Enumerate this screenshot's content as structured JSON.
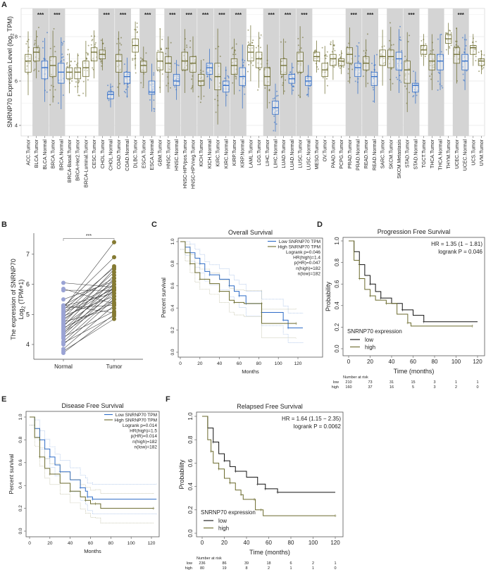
{
  "panel_labels": [
    "A",
    "B",
    "C",
    "D",
    "E",
    "F"
  ],
  "chart_data": [
    {
      "panel": "A",
      "type": "box",
      "ylabel_parts": [
        "SNRNP70 Expression Level (log",
        "2",
        " TPM)"
      ],
      "yticks": [
        4,
        6,
        8
      ],
      "categories": [
        "ACC.Tumor",
        "BLCA.Tumor",
        "BLCA.Normal",
        "BRCA.Tumor",
        "BRCA.Normal",
        "BRCA-Basal.Tumor",
        "BRCA-Her2.Tumor",
        "BRCA-Luminal.Tumor",
        "CESC.Tumor",
        "CHOL.Tumor",
        "CHOL.Normal",
        "COAD.Tumor",
        "COAD.Normal",
        "DLBC.Tumor",
        "ESCA.Tumor",
        "ESCA.Normal",
        "GBM.Tumor",
        "HNSC.Tumor",
        "HNSC.Normal",
        "HNSC-HPVpos.Tumor",
        "HNSC-HPVneg.Tumor",
        "KICH.Tumor",
        "KICH.Normal",
        "KIRC.Tumor",
        "KIRC.Normal",
        "KIRP.Tumor",
        "KIRP.Normal",
        "LAML.Tumor",
        "LGG.Tumor",
        "LIHC.Tumor",
        "LIHC.Normal",
        "LUAD.Tumor",
        "LUAD.Normal",
        "LUSC.Tumor",
        "LUSC.Normal",
        "MESO.Tumor",
        "OV.Tumor",
        "PAAD.Tumor",
        "PCPG.Tumor",
        "PRAD.Tumor",
        "PRAD.Normal",
        "READ.Tumor",
        "READ.Normal",
        "SARC.Tumor",
        "SKCM.Tumor",
        "SKCM.Metastasis",
        "STAD.Tumor",
        "STAD.Normal",
        "TGCT.Tumor",
        "THCA.Tumor",
        "THCA.Normal",
        "THYM.Tumor",
        "UCEC.Tumor",
        "UCEC.Normal",
        "UCS.Tumor",
        "UVM.Tumor"
      ],
      "median": [
        6.9,
        7.3,
        6.6,
        6.7,
        6.4,
        6.4,
        6.4,
        6.6,
        7.3,
        7.2,
        5.4,
        6.9,
        6.2,
        7.6,
        6.7,
        5.5,
        6.9,
        6.8,
        6.0,
        6.9,
        6.8,
        6.0,
        6.6,
        6.2,
        5.8,
        6.7,
        6.2,
        7.3,
        7.0,
        6.2,
        4.8,
        6.7,
        6.1,
        6.9,
        6.0,
        7.1,
        6.5,
        7.0,
        6.9,
        7.2,
        6.6,
        6.8,
        6.2,
        7.1,
        7.1,
        7.0,
        6.5,
        5.8,
        7.4,
        6.9,
        6.9,
        7.9,
        7.2,
        6.9,
        7.5,
        6.9
      ],
      "q1": [
        6.4,
        6.9,
        6.1,
        6.2,
        5.9,
        6.1,
        6.1,
        6.2,
        6.9,
        7.0,
        5.2,
        6.4,
        5.9,
        7.3,
        6.4,
        5.4,
        6.5,
        6.4,
        5.8,
        6.5,
        6.4,
        5.8,
        6.3,
        5.6,
        5.5,
        6.3,
        5.8,
        6.9,
        6.6,
        5.8,
        4.5,
        6.3,
        5.9,
        6.4,
        5.8,
        6.9,
        6.2,
        6.7,
        6.7,
        6.8,
        6.2,
        6.5,
        5.8,
        6.7,
        6.6,
        6.5,
        5.9,
        5.5,
        7.2,
        6.5,
        6.5,
        7.7,
        6.8,
        6.5,
        7.2,
        6.7
      ],
      "q3": [
        7.2,
        7.5,
        6.9,
        7.1,
        6.8,
        6.6,
        6.6,
        6.9,
        7.5,
        7.4,
        5.5,
        7.2,
        6.4,
        7.9,
        6.9,
        6.0,
        7.3,
        7.1,
        6.3,
        7.3,
        7.1,
        6.3,
        6.8,
        6.8,
        6.0,
        7.0,
        6.6,
        7.6,
        7.3,
        6.6,
        5.1,
        7.0,
        6.3,
        7.3,
        6.2,
        7.3,
        6.8,
        7.2,
        7.0,
        7.5,
        6.8,
        7.1,
        6.4,
        7.4,
        7.4,
        7.3,
        6.9,
        5.9,
        7.6,
        7.2,
        7.2,
        8.1,
        7.5,
        7.2,
        7.6,
        7.0
      ],
      "shaded_pairs": [
        {
          "pair": [
            1,
            2
          ],
          "sig": "***"
        },
        {
          "pair": [
            3,
            4
          ],
          "sig": "***"
        },
        {
          "pair": [
            9,
            10
          ],
          "sig": "***"
        },
        {
          "pair": [
            11,
            12
          ],
          "sig": "***"
        },
        {
          "pair": [
            14,
            15
          ],
          "sig": "***"
        },
        {
          "pair": [
            17,
            18
          ],
          "sig": "***"
        },
        {
          "pair": [
            19,
            20
          ],
          "sig": "***"
        },
        {
          "pair": [
            21,
            22
          ],
          "sig": "***"
        },
        {
          "pair": [
            23,
            24
          ],
          "sig": "***"
        },
        {
          "pair": [
            25,
            26
          ],
          "sig": "***"
        },
        {
          "pair": [
            29,
            30
          ],
          "sig": "***"
        },
        {
          "pair": [
            31,
            32
          ],
          "sig": "***"
        },
        {
          "pair": [
            33,
            34
          ],
          "sig": "***"
        },
        {
          "pair": [
            39,
            40
          ],
          "sig": "***"
        },
        {
          "pair": [
            41,
            42
          ],
          "sig": "***"
        },
        {
          "pair": [
            44,
            45
          ],
          "sig": ""
        },
        {
          "pair": [
            46,
            47
          ],
          "sig": "***"
        },
        {
          "pair": [
            49,
            50
          ],
          "sig": ""
        },
        {
          "pair": [
            52,
            53
          ],
          "sig": "***"
        }
      ],
      "colors": {
        "tumor": "#6b6a2c",
        "normal": "#2e6cc8",
        "shade": "#d4d4d4"
      }
    },
    {
      "panel": "B",
      "type": "line",
      "ylabel_line1": "The expression of SNRNP70",
      "ylabel_parts": [
        "Log",
        "2",
        " (TPM+1)"
      ],
      "categories": [
        "Normal",
        "Tumor"
      ],
      "yticks": [
        4,
        5,
        6,
        7
      ],
      "significance": "***",
      "normal": [
        3.72,
        3.78,
        3.85,
        4.0,
        4.05,
        4.1,
        4.2,
        4.25,
        4.3,
        4.35,
        4.4,
        4.45,
        4.5,
        4.55,
        4.6,
        4.65,
        4.7,
        4.75,
        4.8,
        4.85,
        4.9,
        4.95,
        5.0,
        5.05,
        5.1,
        5.15,
        5.2,
        5.22,
        5.25,
        5.28,
        5.3,
        5.3,
        5.5,
        5.8,
        5.85,
        6.05
      ],
      "tumor": [
        5.0,
        4.85,
        5.3,
        5.5,
        4.95,
        5.6,
        5.8,
        5.1,
        5.9,
        6.2,
        5.5,
        5.7,
        6.0,
        5.4,
        6.3,
        5.8,
        6.5,
        5.2,
        6.1,
        5.9,
        6.4,
        5.6,
        6.6,
        5.85,
        6.0,
        6.55,
        7.4,
        5.3,
        6.9,
        5.7,
        6.2,
        5.05,
        6.1,
        5.8,
        5.35,
        5.9
      ],
      "colors": {
        "normal": "#9aa3d4",
        "tumor": "#857a32"
      }
    },
    {
      "panel": "C",
      "type": "line",
      "title": "Overall Survival",
      "xlabel": "Months",
      "ylabel": "Percent survival",
      "xticks": [
        0,
        20,
        40,
        60,
        80,
        100,
        120
      ],
      "yticks": [
        "0.0",
        "0.2",
        "0.4",
        "0.6",
        "0.8",
        "1.0"
      ],
      "series": [
        {
          "name": "Low SNRNP70 TPM",
          "color": "#2e6cc8",
          "points": [
            [
              0,
              1
            ],
            [
              5,
              0.95
            ],
            [
              10,
              0.9
            ],
            [
              15,
              0.85
            ],
            [
              20,
              0.8
            ],
            [
              25,
              0.73
            ],
            [
              30,
              0.7
            ],
            [
              40,
              0.66
            ],
            [
              50,
              0.6
            ],
            [
              55,
              0.55
            ],
            [
              60,
              0.51
            ],
            [
              67,
              0.51
            ],
            [
              67,
              0.44
            ],
            [
              83,
              0.44
            ],
            [
              83,
              0.36
            ],
            [
              105,
              0.36
            ],
            [
              105,
              0.29
            ],
            [
              110,
              0.29
            ],
            [
              110,
              0.22
            ],
            [
              125,
              0.22
            ]
          ]
        },
        {
          "name": "High SNRNP70 TPM",
          "color": "#6b6a2c",
          "points": [
            [
              0,
              1
            ],
            [
              5,
              0.9
            ],
            [
              10,
              0.8
            ],
            [
              15,
              0.72
            ],
            [
              20,
              0.66
            ],
            [
              30,
              0.62
            ],
            [
              40,
              0.55
            ],
            [
              50,
              0.47
            ],
            [
              55,
              0.45
            ],
            [
              65,
              0.44
            ],
            [
              83,
              0.44
            ],
            [
              83,
              0.26
            ],
            [
              118,
              0.26
            ]
          ]
        }
      ],
      "stats": [
        "Logrank p=0.046",
        "HR(high)=1.4",
        "p(HR)=0.047",
        "n(high)=182",
        "n(low)=182"
      ]
    },
    {
      "panel": "D",
      "type": "line",
      "title": "Progression Free Survival",
      "xlabel": "Time (months)",
      "ylabel": "Probability",
      "xticks": [
        0,
        20,
        40,
        60,
        80,
        100,
        120
      ],
      "yticks": [
        "0.0",
        "0.2",
        "0.4",
        "0.6",
        "0.8",
        "1.0"
      ],
      "hr_text": "HR = 1.35 (1 − 1.81)",
      "logrank_text": "logrank P = 0.046",
      "legend_title": "SNRNP70 expression",
      "series": [
        {
          "name": "low",
          "color": "#111111",
          "points": [
            [
              0,
              1
            ],
            [
              5,
              0.9
            ],
            [
              10,
              0.78
            ],
            [
              15,
              0.68
            ],
            [
              20,
              0.6
            ],
            [
              25,
              0.53
            ],
            [
              30,
              0.47
            ],
            [
              40,
              0.42
            ],
            [
              50,
              0.36
            ],
            [
              60,
              0.31
            ],
            [
              70,
              0.25
            ],
            [
              120,
              0.25
            ]
          ]
        },
        {
          "name": "high",
          "color": "#6b6a2c",
          "points": [
            [
              0,
              1
            ],
            [
              5,
              0.82
            ],
            [
              10,
              0.65
            ],
            [
              15,
              0.55
            ],
            [
              20,
              0.49
            ],
            [
              25,
              0.45
            ],
            [
              35,
              0.42
            ],
            [
              45,
              0.32
            ],
            [
              55,
              0.24
            ],
            [
              58,
              0.21
            ],
            [
              115,
              0.21
            ]
          ]
        }
      ],
      "number_at_risk": {
        "title": "Number at risk",
        "rows": [
          {
            "label": "low",
            "values": [
              210,
              73,
              31,
              15,
              3,
              1,
              1
            ]
          },
          {
            "label": "high",
            "values": [
              160,
              37,
              16,
              5,
              3,
              2,
              0
            ]
          }
        ]
      }
    },
    {
      "panel": "E",
      "type": "line",
      "title": "Disease Free Survival",
      "xlabel": "Months",
      "ylabel": "Percent survival",
      "xticks": [
        0,
        20,
        40,
        60,
        80,
        100,
        120
      ],
      "yticks": [
        "0.0",
        "0.2",
        "0.4",
        "0.6",
        "0.8",
        "1.0"
      ],
      "series": [
        {
          "name": "Low SNRNP70 TPM",
          "color": "#2e6cc8",
          "points": [
            [
              0,
              1
            ],
            [
              5,
              0.9
            ],
            [
              10,
              0.8
            ],
            [
              15,
              0.72
            ],
            [
              20,
              0.65
            ],
            [
              25,
              0.58
            ],
            [
              30,
              0.52
            ],
            [
              40,
              0.45
            ],
            [
              50,
              0.38
            ],
            [
              55,
              0.35
            ],
            [
              57,
              0.3
            ],
            [
              62,
              0.3
            ],
            [
              62,
              0.28
            ],
            [
              125,
              0.28
            ]
          ]
        },
        {
          "name": "High SNRNP70 TPM",
          "color": "#6b6a2c",
          "points": [
            [
              0,
              1
            ],
            [
              5,
              0.82
            ],
            [
              10,
              0.65
            ],
            [
              15,
              0.55
            ],
            [
              20,
              0.5
            ],
            [
              30,
              0.42
            ],
            [
              40,
              0.35
            ],
            [
              50,
              0.3
            ],
            [
              55,
              0.27
            ],
            [
              60,
              0.24
            ],
            [
              65,
              0.24
            ],
            [
              70,
              0.2
            ],
            [
              122,
              0.2
            ]
          ]
        }
      ],
      "stats": [
        "Logrank p=0.014",
        "HR(high)=1.5",
        "p(HR)=0.014",
        "n(high)=182",
        "n(low)=182"
      ]
    },
    {
      "panel": "F",
      "type": "line",
      "title": "Relapsed Free Survival",
      "xlabel": "Time (months)",
      "ylabel": "Probability",
      "xticks": [
        0,
        20,
        40,
        60,
        80,
        100,
        120
      ],
      "yticks": [
        "0.0",
        "0.2",
        "0.4",
        "0.6",
        "0.8",
        "1.0"
      ],
      "hr_text": "HR = 1.64 (1.15 − 2.35)",
      "logrank_text": "logrank P = 0.0062",
      "legend_title": "SNRNP70 expression",
      "series": [
        {
          "name": "low",
          "color": "#111111",
          "points": [
            [
              0,
              1
            ],
            [
              5,
              0.9
            ],
            [
              10,
              0.78
            ],
            [
              15,
              0.68
            ],
            [
              20,
              0.62
            ],
            [
              25,
              0.57
            ],
            [
              30,
              0.53
            ],
            [
              40,
              0.48
            ],
            [
              50,
              0.42
            ],
            [
              57,
              0.42
            ],
            [
              57,
              0.38
            ],
            [
              67,
              0.38
            ],
            [
              68,
              0.35
            ],
            [
              120,
              0.35
            ]
          ]
        },
        {
          "name": "high",
          "color": "#6b6a2c",
          "points": [
            [
              0,
              1
            ],
            [
              5,
              0.8
            ],
            [
              8,
              0.7
            ],
            [
              10,
              0.6
            ],
            [
              15,
              0.55
            ],
            [
              20,
              0.47
            ],
            [
              25,
              0.43
            ],
            [
              30,
              0.37
            ],
            [
              35,
              0.33
            ],
            [
              37,
              0.29
            ],
            [
              47,
              0.29
            ],
            [
              48,
              0.2
            ],
            [
              53,
              0.2
            ],
            [
              55,
              0.15
            ],
            [
              120,
              0.15
            ]
          ]
        }
      ],
      "number_at_risk": {
        "title": "Number at risk",
        "rows": [
          {
            "label": "low",
            "values": [
              236,
              86,
              39,
              18,
              6,
              2,
              1
            ]
          },
          {
            "label": "high",
            "values": [
              80,
              19,
              8,
              2,
              1,
              1,
              0
            ]
          }
        ]
      }
    }
  ]
}
